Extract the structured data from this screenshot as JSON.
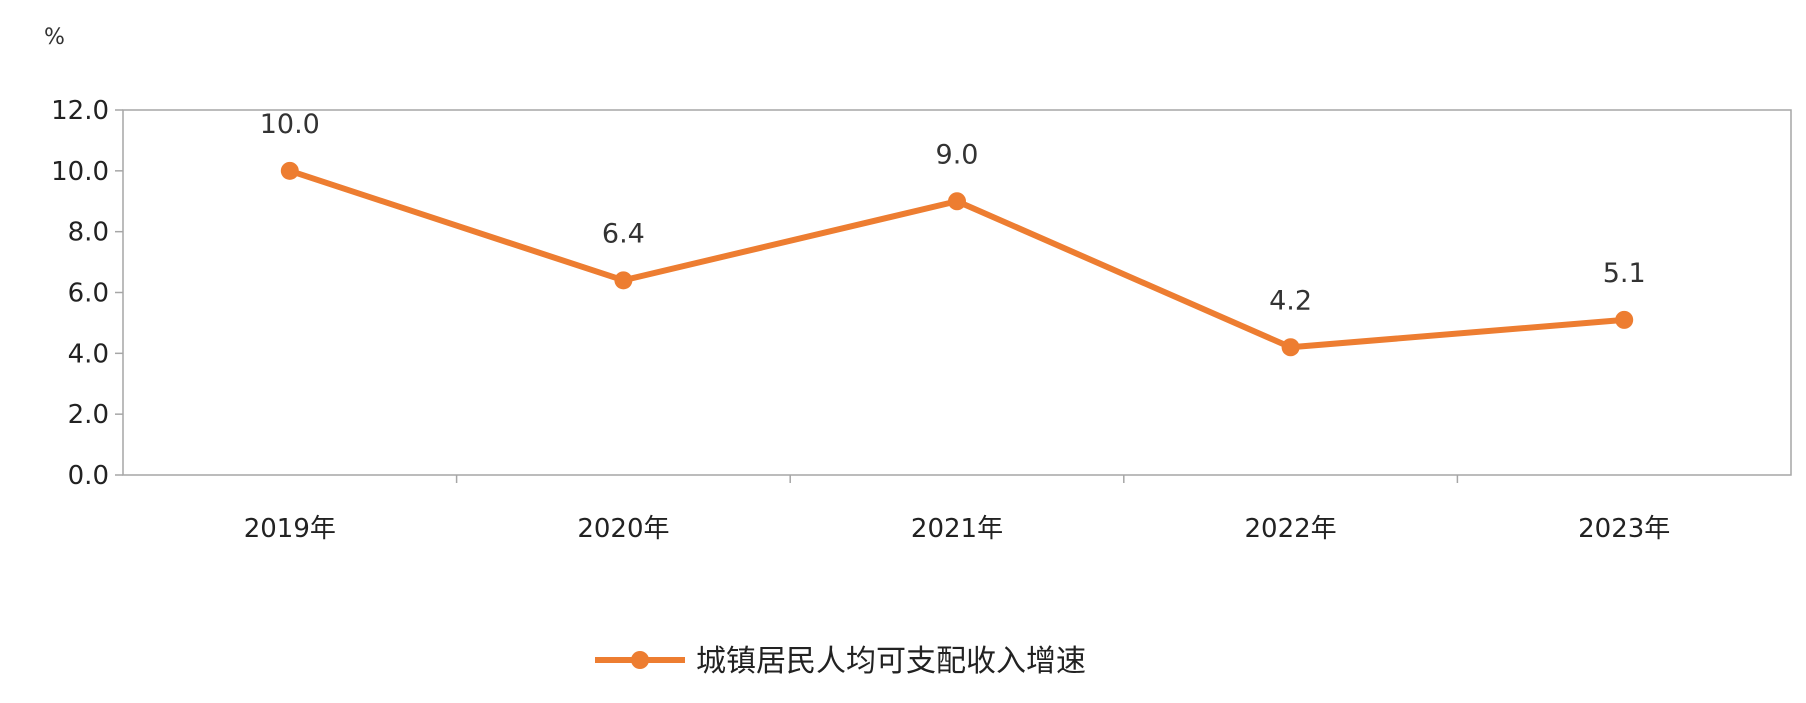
{
  "chart_data": {
    "type": "line",
    "unit_label": "%",
    "categories": [
      "2019年",
      "2020年",
      "2021年",
      "2022年",
      "2023年"
    ],
    "series": [
      {
        "name": "城镇居民人均可支配收入增速",
        "values": [
          10.0,
          6.4,
          9.0,
          4.2,
          5.1
        ],
        "labels": [
          "10.0",
          "6.4",
          "9.0",
          "4.2",
          "5.1"
        ],
        "color": "#ED7D31"
      }
    ],
    "y_ticks": [
      "0.0",
      "2.0",
      "4.0",
      "6.0",
      "8.0",
      "10.0",
      "12.0"
    ],
    "ylim": [
      0,
      12
    ],
    "grid": false,
    "legend_position": "bottom"
  }
}
